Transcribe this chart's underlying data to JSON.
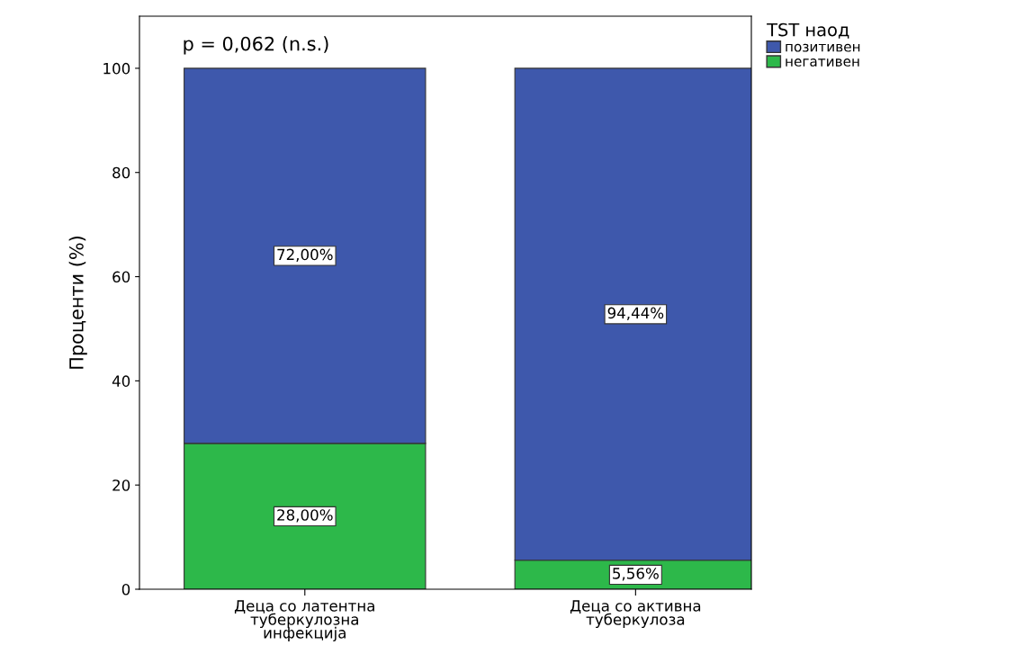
{
  "chart_data": {
    "type": "bar",
    "stacked": true,
    "ylabel": "Проценти (%)",
    "legend_title": "TST наод",
    "legend": "top right",
    "categories": [
      "Деца со латентна\nтуберкулозна\nинфекција",
      "Деца со активна\nтуберкулоза"
    ],
    "series": [
      {
        "name": "негативен",
        "color": "#2db84a",
        "values": [
          28.0,
          5.56
        ],
        "value_labels": [
          "28,00%",
          "5,56%"
        ]
      },
      {
        "name": "позитивен",
        "color": "#3e58ac",
        "values": [
          72.0,
          94.44
        ],
        "value_labels": [
          "72,00%",
          "94,44%"
        ]
      }
    ],
    "ylim": [
      0,
      110
    ],
    "yticks": [
      0,
      20,
      40,
      60,
      80,
      100
    ],
    "grid": false,
    "annotations": [
      "p = 0,062 (n.s.)"
    ]
  }
}
